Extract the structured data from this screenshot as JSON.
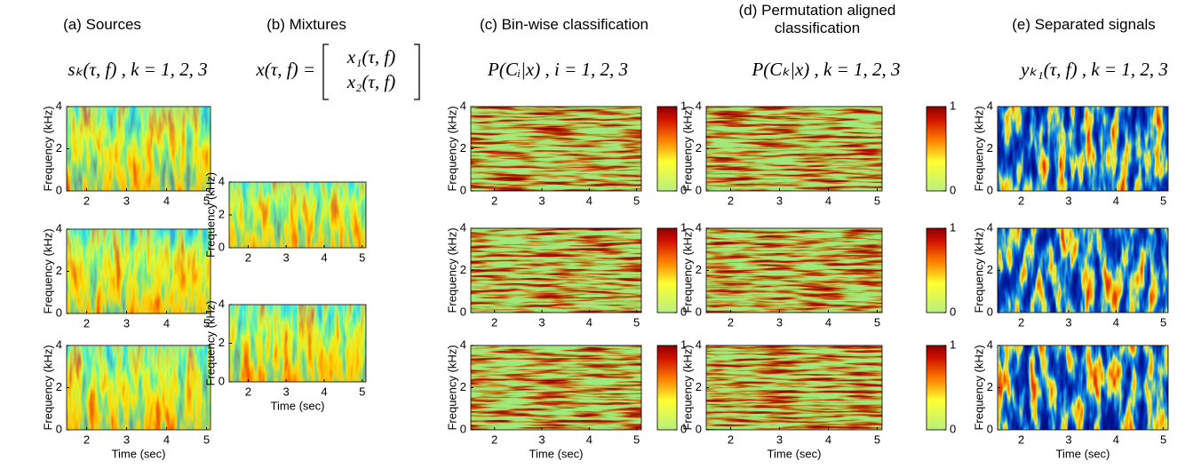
{
  "figure": {
    "x_label": "Time (sec)",
    "y_label": "Frequency (kHz)",
    "xlim": [
      1.5,
      5.1
    ],
    "ylim": [
      0,
      4
    ],
    "xticks": [
      2,
      3,
      4,
      5
    ],
    "yticks": [
      0,
      2,
      4
    ],
    "colorbar_lim": [
      0,
      1
    ],
    "colorbar_ticks": [
      0,
      1
    ],
    "panels": [
      {
        "title": "(a) Sources",
        "formula": "sₖ(τ, f) ,   k = 1, 2, 3"
      },
      {
        "title": "(b) Mixtures",
        "formula": "x(τ, f) =",
        "formula_rows": [
          "x₁(τ, f)",
          "x₂(τ, f)"
        ]
      },
      {
        "title": "(c) Bin-wise classification",
        "formula": "P(Cᵢ|x) ,   i = 1, 2, 3"
      },
      {
        "title": "(d) Permutation aligned classification",
        "formula": "P(Cₖ|x) ,   k = 1, 2, 3"
      },
      {
        "title": "(e) Separated signals",
        "formula": "yₖ₁(τ, f) ,   k = 1, 2, 3"
      }
    ]
  }
}
